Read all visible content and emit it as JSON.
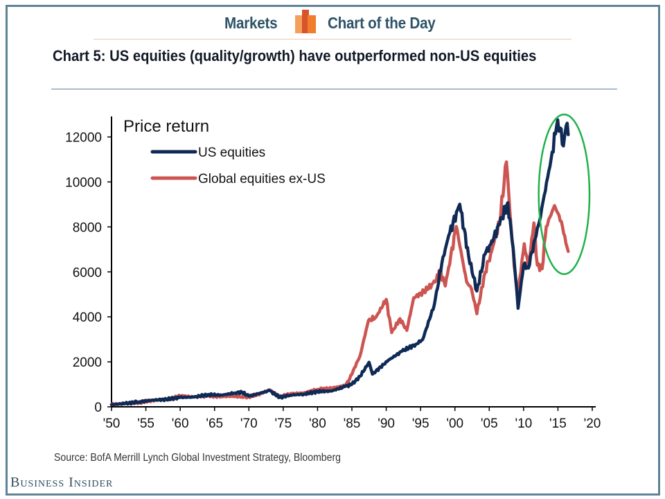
{
  "header": {
    "section_label": "Markets",
    "series_label": "Chart of the Day",
    "logo_icon": "bar-chart-logo-icon",
    "logo_colors": [
      "#f5a05a",
      "#d9532a",
      "#ef7d2c"
    ]
  },
  "title": "Chart 5: US equities (quality/growth) have outperformed non-US equities",
  "source": "Source: BofA Merrill Lynch Global Investment Strategy, Bloomberg",
  "brand": "Business Insider",
  "colors": {
    "us": "#0f2a55",
    "global": "#cc5552",
    "highlight": "#20b04a",
    "axis": "#000000"
  },
  "chart_data": {
    "type": "line",
    "title": "Chart 5: US equities (quality/growth) have outperformed non-US equities",
    "inner_label": "Price return",
    "xlabel": "",
    "ylabel": "",
    "xlim": [
      1950,
      2020
    ],
    "ylim": [
      0,
      12600
    ],
    "x_ticks": [
      1950,
      1955,
      1960,
      1965,
      1970,
      1975,
      1980,
      1985,
      1990,
      1995,
      2000,
      2005,
      2010,
      2015,
      2020
    ],
    "x_tick_labels": [
      "'50",
      "'55",
      "'60",
      "'65",
      "'70",
      "'75",
      "'80",
      "'85",
      "'90",
      "'95",
      "'00",
      "'05",
      "'10",
      "'15",
      "'20"
    ],
    "y_ticks": [
      0,
      2000,
      4000,
      6000,
      8000,
      10000,
      12000
    ],
    "y_tick_labels": [
      "0",
      "2000",
      "4000",
      "6000",
      "8000",
      "10000",
      "12000"
    ],
    "grid": false,
    "legend": {
      "placement": "top-left",
      "entries": [
        "US equities",
        "Global equities ex-US"
      ]
    },
    "annotation": {
      "type": "ellipse",
      "description": "highlight of 2012-2016 divergence",
      "x_range": [
        2012.2,
        2019.6
      ],
      "y_range": [
        5900,
        13000
      ]
    },
    "series": [
      {
        "name": "US equities",
        "color": "#0f2a55",
        "x": [
          1950,
          1952,
          1954,
          1956,
          1958,
          1960,
          1962,
          1964,
          1966,
          1968,
          1969,
          1970,
          1972,
          1973,
          1974.5,
          1976,
          1978,
          1980,
          1982,
          1984,
          1985,
          1986.2,
          1987.5,
          1988,
          1990.3,
          1992.3,
          1994.3,
          1995.3,
          1997,
          1998.1,
          1999.1,
          2000.7,
          2002,
          2003.2,
          2004.4,
          2005.2,
          2006.5,
          2007.7,
          2008.5,
          2009.2,
          2010,
          2010.7,
          2011.5,
          2012.3,
          2013,
          2014,
          2014.8,
          2015.3,
          2015.8,
          2016.2,
          2016.5
        ],
        "y": [
          100,
          150,
          220,
          300,
          330,
          420,
          430,
          540,
          520,
          620,
          650,
          470,
          640,
          720,
          420,
          520,
          560,
          680,
          700,
          900,
          1000,
          1360,
          1980,
          1450,
          2070,
          2470,
          2780,
          2990,
          4540,
          6390,
          7620,
          9010,
          6700,
          5150,
          6790,
          7220,
          8100,
          9080,
          7000,
          4380,
          6300,
          6170,
          7300,
          8240,
          9400,
          11000,
          12460,
          12400,
          11600,
          12500,
          12100
        ]
      },
      {
        "name": "Global equities ex-US",
        "color": "#cc5552",
        "x": [
          1950,
          1952,
          1954,
          1956,
          1958,
          1960,
          1962,
          1964,
          1966,
          1968,
          1969,
          1970,
          1972,
          1973,
          1974.5,
          1976,
          1978,
          1980,
          1982,
          1984,
          1984.5,
          1986.2,
          1987.4,
          1988.5,
          1990,
          1990.8,
          1992,
          1993,
          1994,
          1996,
          1997.6,
          1997.8,
          1998.6,
          2000.2,
          2001.7,
          2002.4,
          2003.2,
          2004.4,
          2005.2,
          2006.5,
          2007.5,
          2008.3,
          2009.1,
          2010.1,
          2010.7,
          2011.5,
          2012,
          2012.7,
          2013.3,
          2014.5,
          2015.5,
          2016,
          2016.5
        ],
        "y": [
          100,
          140,
          200,
          280,
          330,
          470,
          440,
          480,
          470,
          460,
          450,
          450,
          600,
          760,
          440,
          560,
          620,
          780,
          820,
          960,
          1140,
          2280,
          3830,
          3980,
          4780,
          3300,
          3920,
          3400,
          4850,
          5210,
          5770,
          6080,
          5370,
          8020,
          5560,
          5250,
          4140,
          5990,
          6790,
          8200,
          10890,
          7500,
          4850,
          7250,
          6170,
          8180,
          6300,
          6140,
          8020,
          8950,
          8240,
          7600,
          6910
        ]
      }
    ]
  }
}
